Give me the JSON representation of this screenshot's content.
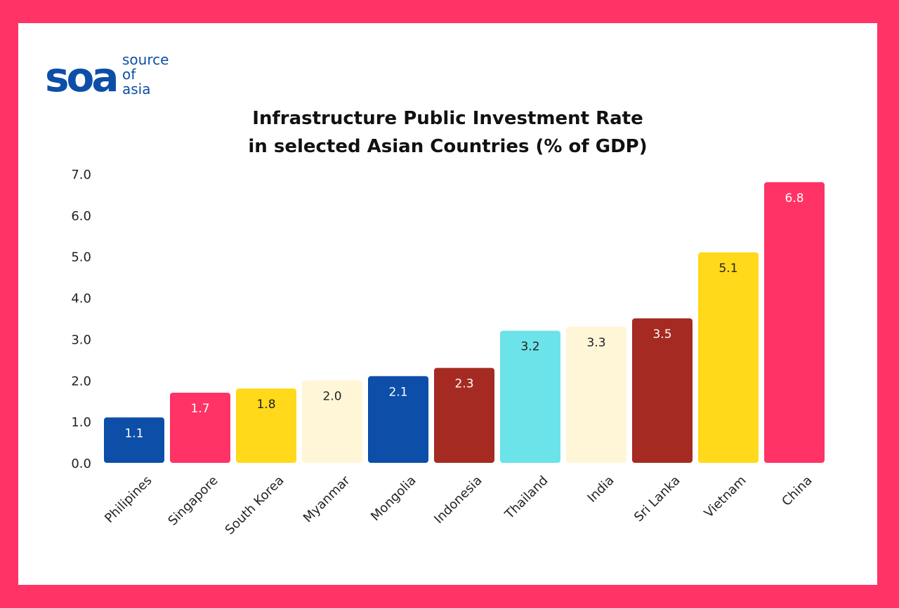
{
  "branding": {
    "logo_mark": "soa",
    "logo_lines": [
      "source",
      "of",
      "asia"
    ]
  },
  "colors": {
    "frame": "#ff3366",
    "card": "#ffffff",
    "brand_blue": "#0d4ea8"
  },
  "chart_data": {
    "type": "bar",
    "title_lines": [
      "Infrastructure Public Investment Rate",
      "in selected Asian Countries (% of GDP)"
    ],
    "xlabel": "",
    "ylabel": "",
    "ylim": [
      0,
      7
    ],
    "yticks": [
      0,
      1,
      2,
      3,
      4,
      5,
      6,
      7
    ],
    "ytick_labels": [
      "0.0",
      "1.0",
      "2.0",
      "3.0",
      "4.0",
      "5.0",
      "6.0",
      "7.0"
    ],
    "grid": false,
    "legend": "none",
    "categories": [
      "Philipines",
      "Singapore",
      "South Korea",
      "Myanmar",
      "Mongolia",
      "Indonesia",
      "Thailand",
      "India",
      "Sri Lanka",
      "Vietnam",
      "China"
    ],
    "values": [
      1.1,
      1.7,
      1.8,
      2.0,
      2.1,
      2.3,
      3.2,
      3.3,
      3.5,
      5.1,
      6.8
    ],
    "value_labels": [
      "1.1",
      "1.7",
      "1.8",
      "2.0",
      "2.1",
      "2.3",
      "3.2",
      "3.3",
      "3.5",
      "5.1",
      "6.8"
    ],
    "bar_colors": [
      "#0d4ea8",
      "#ff3366",
      "#ffd91a",
      "#fff6d8",
      "#0d4ea8",
      "#a52b22",
      "#6be3e8",
      "#fff6d8",
      "#a52b22",
      "#ffd91a",
      "#ff3366"
    ],
    "label_colors": [
      "#ffffff",
      "#ffffff",
      "#222222",
      "#222222",
      "#ffffff",
      "#ffffff",
      "#222222",
      "#222222",
      "#ffffff",
      "#222222",
      "#ffffff"
    ]
  }
}
